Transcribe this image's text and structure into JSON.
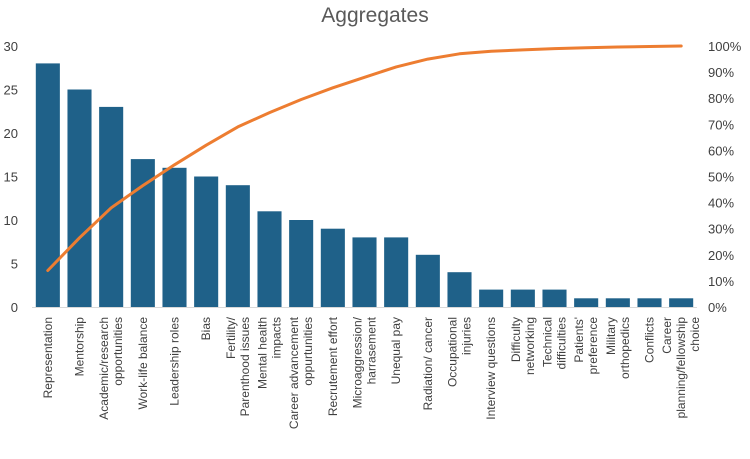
{
  "chart_data": {
    "type": "bar",
    "title": "Aggregates",
    "categories": [
      "Representation",
      "Mentorship",
      "Academic/research opportunities",
      "Work-life balance",
      "Leadership roles",
      "Bias",
      "Fertility/ Parenthood issues",
      "Mental health impacts",
      "Career advancement oppurtunities",
      "Recrutement effort",
      "Microaggression/ harrasement",
      "Unequal pay",
      "Radiation/ cancer",
      "Occupational injuries",
      "Interview questions",
      "Difficulty networking",
      "Technical difficulties",
      "Patients' preference",
      "Military orthopedics",
      "Conflicts",
      "Career planning/fellowship choice"
    ],
    "series": [
      {
        "type": "bar",
        "values": [
          28,
          25,
          23,
          17,
          16,
          15,
          14,
          11,
          10,
          9,
          8,
          8,
          6,
          4,
          2,
          2,
          2,
          1,
          1,
          1,
          1
        ],
        "color": "#1f6189"
      },
      {
        "type": "line",
        "axis": "secondary",
        "values": [
          0.14,
          0.265,
          0.38,
          0.465,
          0.545,
          0.62,
          0.69,
          0.745,
          0.795,
          0.84,
          0.88,
          0.92,
          0.95,
          0.97,
          0.98,
          0.985,
          0.99,
          0.993,
          0.996,
          0.998,
          1.0
        ],
        "color": "#ed7d31"
      }
    ],
    "y_ticks": [
      "0",
      "5",
      "10",
      "15",
      "20",
      "25",
      "30"
    ],
    "y2_ticks": [
      "0%",
      "10%",
      "20%",
      "30%",
      "40%",
      "50%",
      "60%",
      "70%",
      "80%",
      "90%",
      "100%"
    ],
    "ylim": [
      0,
      30
    ],
    "y2lim": [
      0,
      1
    ],
    "grid": false,
    "legend": "none"
  }
}
